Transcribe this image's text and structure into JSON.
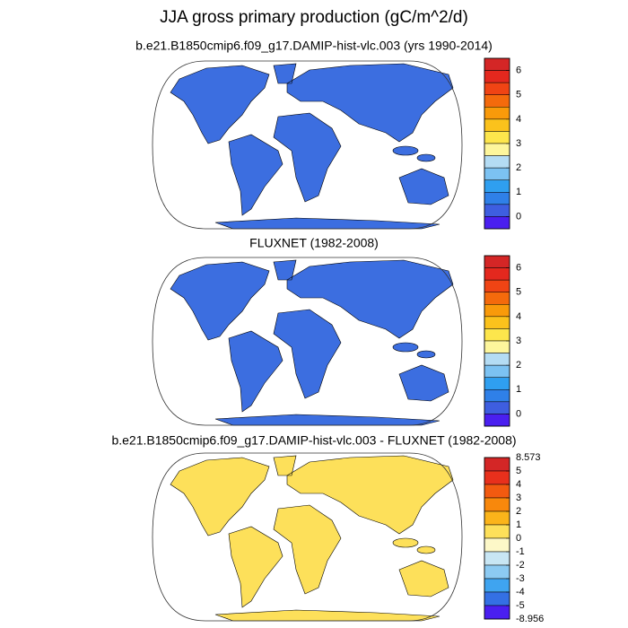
{
  "title": "JJA gross primary production (gC/m^2/d)",
  "panels": [
    {
      "subtitle": "b.e21.B1850cmip6.f09_g17.DAMIP-hist-vlc.003 (yrs 1990-2014)",
      "colorbar": {
        "colors": [
          "#d42626",
          "#e4281e",
          "#f04414",
          "#f46a0c",
          "#f99a0a",
          "#fbc21c",
          "#fde64c",
          "#fdf69c",
          "#b4dcf4",
          "#7cc2f2",
          "#2f9ff0",
          "#2f80e8",
          "#3e5ee0",
          "#4a1ff0"
        ],
        "ticks": [
          6,
          5,
          4,
          3,
          2,
          1,
          0
        ]
      }
    },
    {
      "subtitle": "FLUXNET (1982-2008)",
      "colorbar": {
        "colors": [
          "#d42626",
          "#e4281e",
          "#f04414",
          "#f46a0c",
          "#f99a0a",
          "#fbc21c",
          "#fde64c",
          "#fdf69c",
          "#b4dcf4",
          "#7cc2f2",
          "#2f9ff0",
          "#2f80e8",
          "#3e5ee0",
          "#4a1ff0"
        ],
        "ticks": [
          6,
          5,
          4,
          3,
          2,
          1,
          0
        ]
      }
    },
    {
      "subtitle": "b.e21.B1850cmip6.f09_g17.DAMIP-hist-vlc.003 - FLUXNET (1982-2008)",
      "colorbar": {
        "colors": [
          "#d42626",
          "#e8301c",
          "#f25a10",
          "#f8880c",
          "#fbb41a",
          "#fde05a",
          "#fdf8c8",
          "#c8e6f4",
          "#8ccaf2",
          "#3fa4f0",
          "#3470e4",
          "#4a1ff0"
        ],
        "ticks": [
          8.573,
          5,
          4,
          3,
          2,
          1,
          0,
          -1,
          -2,
          -3,
          -4,
          -5,
          -8.956
        ]
      }
    }
  ]
}
